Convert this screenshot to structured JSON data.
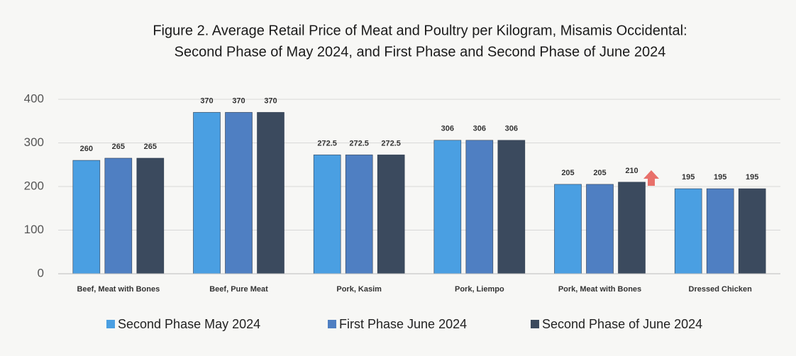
{
  "chart_data": {
    "type": "bar",
    "title": "Figure 2. Average Retail Price of Meat and Poultry per Kilogram, Misamis Occidental:",
    "subtitle": "Second Phase of May 2024, and First Phase and Second Phase of June 2024",
    "categories": [
      "Beef, Meat with Bones",
      "Beef, Pure Meat",
      "Pork, Kasim",
      "Pork, Liempo",
      "Pork, Meat with Bones",
      "Dressed Chicken"
    ],
    "series": [
      {
        "name": "Second Phase May 2024",
        "color": "#4a9fe2",
        "values": [
          260,
          370,
          272.5,
          306,
          205,
          195
        ]
      },
      {
        "name": "First Phase June 2024",
        "color": "#4f7fc2",
        "values": [
          265,
          370,
          272.5,
          306,
          205,
          195
        ]
      },
      {
        "name": "Second Phase of June 2024",
        "color": "#3b4a5e",
        "values": [
          265,
          370,
          272.5,
          306,
          210,
          195
        ]
      }
    ],
    "ylim": [
      0,
      400
    ],
    "yticks": [
      0,
      100,
      200,
      300,
      400
    ],
    "grid": true,
    "legend": "bottom"
  }
}
